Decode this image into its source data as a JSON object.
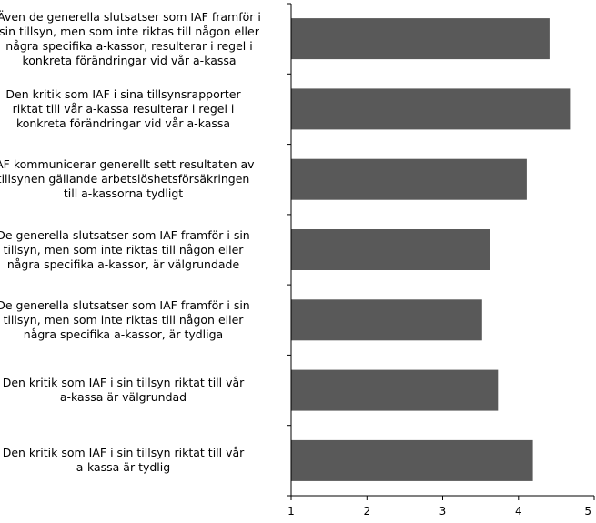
{
  "chart_data": {
    "type": "bar",
    "orientation": "horizontal",
    "categories": [
      "Även de generella slutsatser som IAF framför i sin tillsyn, men som inte riktas till någon eller några specifika a-kassor, resulterar i regel i konkreta förändringar vid vår a-kassa",
      "Den kritik som IAF i sina tillsynsrapporter riktat till vår a-kassa resulterar i regel i konkreta förändringar vid vår a-kassa",
      "IAF kommunicerar generellt sett resultaten av tillsynen gällande arbetslöshetsförsäkringen till a-kassorna tydligt",
      "De generella slutsatser som IAF framför i sin tillsyn, men som inte riktas till någon eller några specifika a-kassor, är välgrundade",
      "De generella slutsatser som IAF framför i sin tillsyn, men som inte riktas till någon eller några specifika a-kassor, är tydliga",
      "Den kritik som IAF i sin tillsyn riktat till vår a-kassa är välgrundad",
      "Den kritik som IAF i sin tillsyn riktat till vår a-kassa är tydlig"
    ],
    "category_lines": [
      [
        "Även de generella slutsatser som IAF framför i",
        "sin tillsyn, men som inte riktas till någon eller",
        "några specifika a-kassor, resulterar i regel i",
        "konkreta förändringar vid vår a-kassa"
      ],
      [
        "Den kritik som IAF i sina tillsynsrapporter",
        "riktat till vår a-kassa resulterar i regel i",
        "konkreta förändringar vid vår a-kassa"
      ],
      [
        "IAF kommunicerar generellt sett resultaten av",
        "tillsynen gällande arbetslöshetsförsäkringen",
        "till a-kassorna tydligt"
      ],
      [
        "De generella slutsatser som IAF framför i sin",
        "tillsyn, men som inte riktas till någon eller",
        "några specifika a-kassor, är välgrundade"
      ],
      [
        "De generella slutsatser som IAF framför i sin",
        "tillsyn, men som inte riktas till någon eller",
        "några specifika a-kassor, är tydliga"
      ],
      [
        "Den kritik som IAF i sin tillsyn riktat till vår",
        "a-kassa är välgrundad"
      ],
      [
        "Den kritik som IAF i sin tillsyn riktat till vår",
        "a-kassa är tydlig"
      ]
    ],
    "values": [
      4.41,
      4.68,
      4.11,
      3.62,
      3.52,
      3.73,
      4.19
    ],
    "xlim": [
      1,
      5
    ],
    "xticks": [
      "1",
      "2",
      "3",
      "4",
      "5"
    ],
    "bar_color": "#595959",
    "title": "",
    "xlabel": "",
    "ylabel": "",
    "grid": false,
    "legend": "none"
  }
}
